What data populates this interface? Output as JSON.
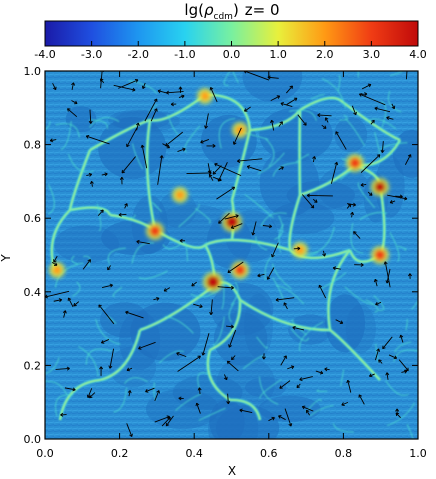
{
  "title": {
    "prefix": "lg(",
    "rho": "ρ",
    "subscript": "cdm",
    "suffix": ")",
    "redshift": "z=  0"
  },
  "colorbar": {
    "ticks": [
      "-4.0",
      "-3.0",
      "-2.0",
      "-1.0",
      "0.0",
      "1.0",
      "2.0",
      "3.0",
      "4.0"
    ],
    "colors": [
      "#1a1aa8",
      "#1f4fe0",
      "#1e96f0",
      "#28d2f0",
      "#78f0a0",
      "#e8f03c",
      "#ff9a14",
      "#f03c14",
      "#c00a0a"
    ]
  },
  "axes": {
    "xlabel": "X",
    "ylabel": "Y",
    "xticks": [
      "0.0",
      "0.2",
      "0.4",
      "0.6",
      "0.8",
      "1.0"
    ],
    "yticks": [
      "0.0",
      "0.2",
      "0.4",
      "0.6",
      "0.8",
      "1.0"
    ]
  },
  "map": {
    "background_color": "#2a8fd4",
    "void_color": "#1e6fbf",
    "filament_color": "#4fe6d0",
    "bright_filament_color": "#b8f070",
    "knot_colors": [
      "#e8f03c",
      "#ff9a14",
      "#f03c14",
      "#c00a0a"
    ],
    "vector_color": "#000000"
  }
}
